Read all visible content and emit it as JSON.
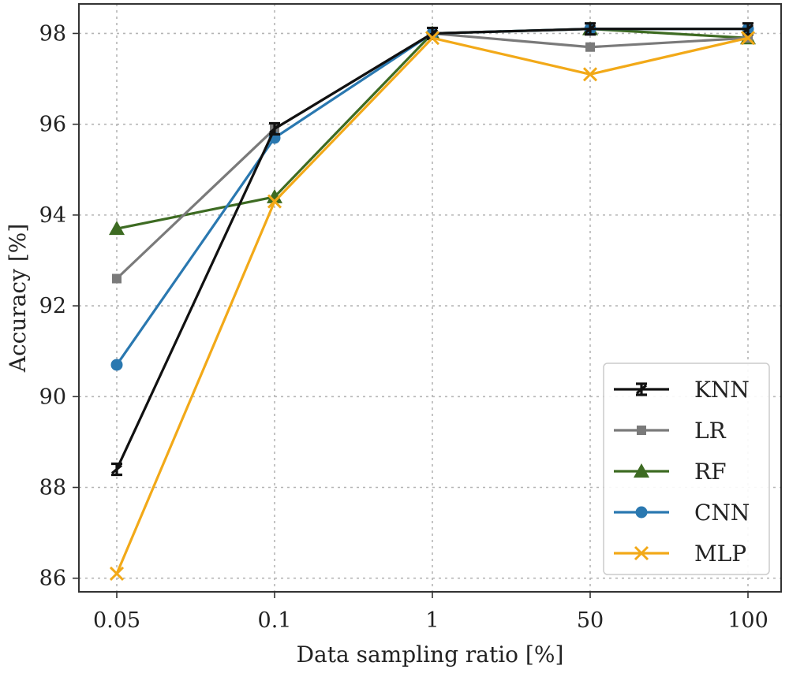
{
  "chart_data": {
    "type": "line",
    "title": "",
    "xlabel": "Data sampling ratio [%]",
    "ylabel": "Accuracy [%]",
    "categories": [
      "0.05",
      "0.1",
      "1",
      "50",
      "100"
    ],
    "ylim": [
      85.7,
      98.65
    ],
    "yticks": [
      "86",
      "88",
      "90",
      "92",
      "94",
      "96",
      "98"
    ],
    "grid": true,
    "legend_position": "lower-right",
    "series": [
      {
        "name": "KNN",
        "color": "#111111",
        "marker": "tri-bar",
        "values": [
          88.4,
          95.9,
          98.0,
          98.1,
          98.1
        ]
      },
      {
        "name": "LR",
        "color": "#7a7a7a",
        "marker": "square",
        "values": [
          92.6,
          95.9,
          98.0,
          97.7,
          97.9
        ]
      },
      {
        "name": "RF",
        "color": "#3d6b22",
        "marker": "triangle",
        "values": [
          93.7,
          94.4,
          98.0,
          98.1,
          97.9
        ]
      },
      {
        "name": "CNN",
        "color": "#2a78b0",
        "marker": "circle",
        "values": [
          90.7,
          95.7,
          98.0,
          98.1,
          98.1
        ]
      },
      {
        "name": "MLP",
        "color": "#f2a918",
        "marker": "x",
        "values": [
          86.1,
          94.3,
          97.9,
          97.1,
          97.9
        ]
      }
    ]
  }
}
